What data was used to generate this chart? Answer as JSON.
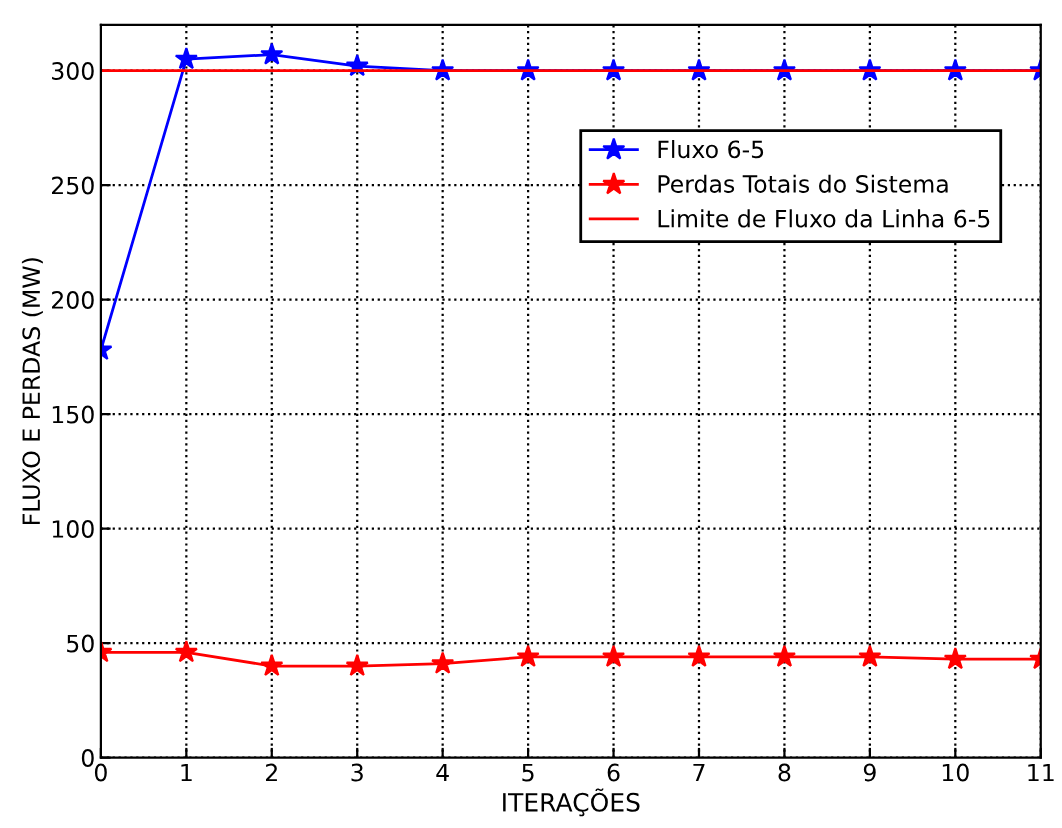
{
  "chart_data": {
    "type": "line",
    "xlabel": "ITERAÇÕES",
    "ylabel": "FLUXO E PERDAS (MW)",
    "x": [
      0,
      1,
      2,
      3,
      4,
      5,
      6,
      7,
      8,
      9,
      10,
      11
    ],
    "series": [
      {
        "name": "Fluxo 6-5",
        "color": "#0000ff",
        "marker": "star",
        "values": [
          178,
          305,
          307,
          302,
          300,
          300,
          300,
          300,
          300,
          300,
          300,
          300
        ]
      },
      {
        "name": "Perdas Totais do Sistema",
        "color": "#ff0000",
        "marker": "star",
        "values": [
          46,
          46,
          40,
          40,
          41,
          44,
          44,
          44,
          44,
          44,
          43,
          43
        ]
      },
      {
        "name": "Limite de Fluxo da Linha 6-5",
        "color": "#ff0000",
        "marker": "none",
        "values": [
          300,
          300,
          300,
          300,
          300,
          300,
          300,
          300,
          300,
          300,
          300,
          300
        ]
      }
    ],
    "xlim": [
      0,
      11
    ],
    "xticks": [
      0,
      1,
      2,
      3,
      4,
      5,
      6,
      7,
      8,
      9,
      10,
      11
    ],
    "ylim": [
      0,
      320
    ],
    "yticks": [
      0,
      50,
      100,
      150,
      200,
      250,
      300
    ],
    "grid": true,
    "legend": "right",
    "line_style": "solid"
  }
}
